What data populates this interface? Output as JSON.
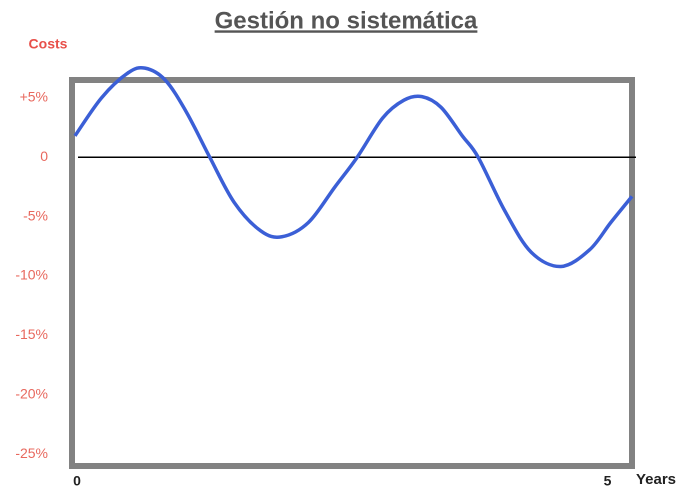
{
  "chart_data": {
    "type": "line",
    "title": "Gestión no sistemática",
    "y_label": "Costs",
    "x_label": "Years",
    "x": [
      0,
      0.25,
      0.5,
      0.66,
      0.85,
      1.05,
      1.27,
      1.5,
      1.75,
      1.95,
      2.2,
      2.45,
      2.66,
      2.9,
      3.1,
      3.27,
      3.45,
      3.65,
      3.8,
      4.05,
      4.3,
      4.58,
      4.85,
      5.05,
      5.25
    ],
    "series": [
      {
        "color": "#3b5fd6",
        "values": [
          1.8,
          5,
          7.1,
          7.5,
          6.5,
          3.8,
          0,
          -3.8,
          -6.2,
          -6.7,
          -5.5,
          -2.5,
          0,
          3.3,
          4.8,
          5.1,
          4.2,
          1.8,
          0,
          -4.5,
          -8,
          -9.2,
          -7.8,
          -5.5,
          -3.3
        ]
      }
    ],
    "xlim": [
      0,
      5.25
    ],
    "xticks": [
      0,
      5
    ],
    "ylim": [
      -26,
      6.5
    ],
    "yticks": [
      {
        "value": 5,
        "label": "+5%"
      },
      0,
      {
        "value": -5,
        "label": "-5%"
      },
      {
        "value": -10,
        "label": "-10%"
      },
      {
        "value": -15,
        "label": "-15%"
      },
      {
        "value": -20,
        "label": "-20%"
      },
      {
        "value": -25,
        "label": "-25%"
      }
    ]
  }
}
